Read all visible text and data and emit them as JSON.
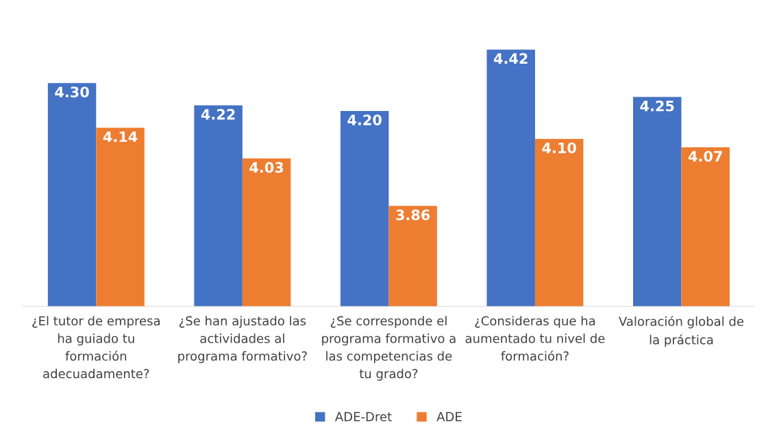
{
  "chart_data": {
    "type": "bar",
    "categories": [
      "¿El tutor de empresa ha guiado tu formación adecuadamente?",
      "¿Se han ajustado las actividades al programa formativo?",
      "¿Se corresponde el programa formativo a las competencias de tu grado?",
      "¿Consideras que ha aumentado tu nivel de formación?",
      "Valoración global de la práctica"
    ],
    "series": [
      {
        "name": "ADE-Dret",
        "color": "#4472c4",
        "values": [
          4.3,
          4.22,
          4.2,
          4.42,
          4.25
        ],
        "value_labels": [
          "4.30",
          "4.22",
          "4.20",
          "4.42",
          "4.25"
        ]
      },
      {
        "name": "ADE",
        "color": "#ed7d31",
        "values": [
          4.14,
          4.03,
          3.86,
          4.1,
          4.07
        ],
        "value_labels": [
          "4.14",
          "4.03",
          "3.86",
          "4.10",
          "4.07"
        ]
      }
    ],
    "ylim": [
      3.5,
      4.42
    ],
    "legend": "bottom",
    "grid": false,
    "tick_labels": "x"
  }
}
